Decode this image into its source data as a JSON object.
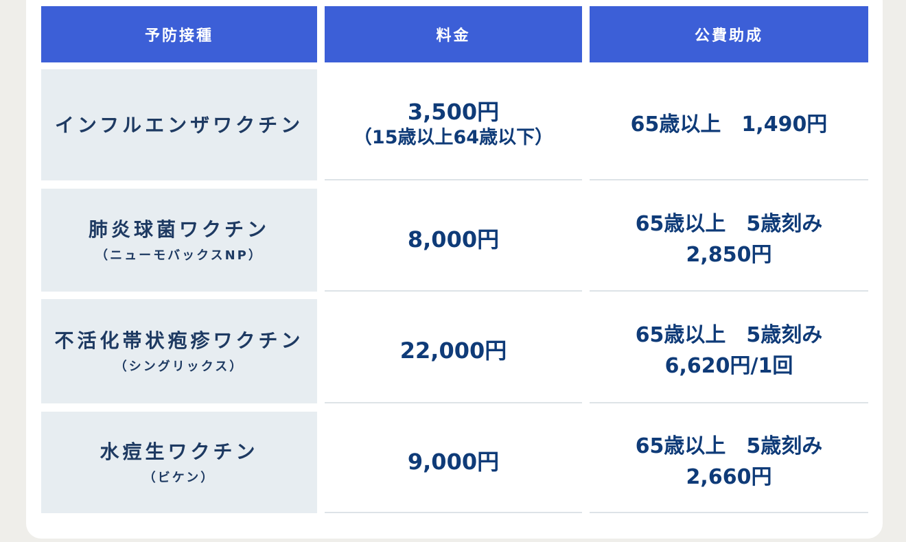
{
  "header": {
    "vaccine": "予防接種",
    "price": "料金",
    "subsidy": "公費助成"
  },
  "rows": [
    {
      "name": "インフルエンザワクチン",
      "sub": "",
      "price": "3,500円",
      "price_note": "（15歳以上64歳以下）",
      "subsidy_line1": "65歳以上　1,490円",
      "subsidy_line2": ""
    },
    {
      "name": "肺炎球菌ワクチン",
      "sub": "（ニューモバックスNP）",
      "price": "8,000円",
      "price_note": "",
      "subsidy_line1": "65歳以上　5歳刻み",
      "subsidy_line2": "2,850円"
    },
    {
      "name": "不活化帯状疱疹ワクチン",
      "sub": "（シングリックス）",
      "price": "22,000円",
      "price_note": "",
      "subsidy_line1": "65歳以上　5歳刻み",
      "subsidy_line2": "6,620円/1回"
    },
    {
      "name": "水痘生ワクチン",
      "sub": "（ビケン）",
      "price": "9,000円",
      "price_note": "",
      "subsidy_line1": "65歳以上　5歳刻み",
      "subsidy_line2": "2,660円"
    }
  ],
  "colors": {
    "header_bg": "#3c5fd7",
    "name_bg": "#e7edf1",
    "text_navy": "#0f3b78",
    "page_bg": "#efeeea"
  }
}
